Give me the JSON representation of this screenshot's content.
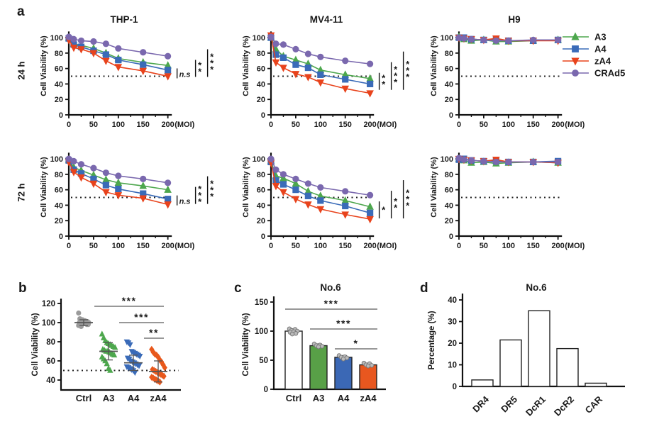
{
  "panels": {
    "a": {
      "label": "a",
      "rows": [
        {
          "row_label": "24 h"
        },
        {
          "row_label": "72 h"
        }
      ]
    },
    "b": {
      "label": "b"
    },
    "c": {
      "label": "c"
    },
    "d": {
      "label": "d"
    }
  },
  "legend": {
    "position": "right-of-H9-24h",
    "items": [
      {
        "label": "A3",
        "color": "#4DA74D",
        "marker": "triangle-up"
      },
      {
        "label": "A4",
        "color": "#3A6BB8",
        "marker": "square"
      },
      {
        "label": "zA4",
        "color": "#E8431C",
        "marker": "triangle-down"
      },
      {
        "label": "CRAd5",
        "color": "#7A68AE",
        "marker": "circle"
      }
    ]
  },
  "chart_data": [
    {
      "id": "a-thp1-24h",
      "panel": "a",
      "type": "line",
      "title": "THP-1",
      "row_label": "24 h",
      "xlabel": "(MOI)",
      "ylabel": "Cell Viability (%)",
      "x": [
        0,
        10,
        25,
        50,
        75,
        100,
        150,
        200
      ],
      "xticks": [
        0,
        50,
        100,
        150,
        200
      ],
      "xminor": [
        25,
        75,
        125,
        175
      ],
      "yticks": [
        0,
        20,
        40,
        60,
        80,
        100
      ],
      "ylim": [
        0,
        112
      ],
      "dotted_line": 50,
      "series": [
        {
          "name": "A3",
          "values": [
            100,
            92,
            90,
            86,
            80,
            73,
            68,
            64
          ]
        },
        {
          "name": "A4",
          "values": [
            99,
            91,
            88,
            83,
            78,
            71,
            65,
            58
          ]
        },
        {
          "name": "zA4",
          "values": [
            97,
            87,
            85,
            80,
            70,
            62,
            57,
            50
          ]
        },
        {
          "name": "CRAd5",
          "values": [
            101,
            98,
            96,
            95,
            92,
            86,
            81,
            76
          ]
        }
      ],
      "significance": [
        "n.s",
        "**",
        "***"
      ]
    },
    {
      "id": "a-mv411-24h",
      "panel": "a",
      "type": "line",
      "title": "MV4-11",
      "row_label": "24 h",
      "xlabel": "(MOI)",
      "ylabel": "Cell Viability (%)",
      "x": [
        0,
        10,
        25,
        50,
        75,
        100,
        150,
        200
      ],
      "xticks": [
        0,
        50,
        100,
        150,
        200
      ],
      "xminor": [
        25,
        75,
        125,
        175
      ],
      "yticks": [
        0,
        20,
        40,
        60,
        80,
        100
      ],
      "ylim": [
        0,
        112
      ],
      "dotted_line": 50,
      "series": [
        {
          "name": "A3",
          "values": [
            100,
            85,
            76,
            71,
            66,
            58,
            52,
            47
          ]
        },
        {
          "name": "A4",
          "values": [
            100,
            78,
            74,
            65,
            61,
            52,
            46,
            40
          ]
        },
        {
          "name": "zA4",
          "values": [
            103,
            68,
            61,
            53,
            49,
            42,
            34,
            28
          ]
        },
        {
          "name": "CRAd5",
          "values": [
            101,
            92,
            91,
            85,
            79,
            75,
            70,
            66
          ]
        }
      ],
      "significance": [
        "**",
        "***",
        "***"
      ]
    },
    {
      "id": "a-h9-24h",
      "panel": "a",
      "type": "line",
      "title": "H9",
      "row_label": "24 h",
      "xlabel": "(MOI)",
      "ylabel": "Cell Viability (%)",
      "x": [
        0,
        10,
        25,
        50,
        75,
        100,
        150,
        200
      ],
      "xticks": [
        0,
        50,
        100,
        150,
        200
      ],
      "xminor": [
        25,
        75,
        125,
        175
      ],
      "yticks": [
        0,
        20,
        40,
        60,
        80,
        100
      ],
      "ylim": [
        0,
        112
      ],
      "dotted_line": 50,
      "series": [
        {
          "name": "A3",
          "values": [
            101,
            98,
            96,
            97,
            95,
            95,
            96,
            97
          ]
        },
        {
          "name": "A4",
          "values": [
            100,
            100,
            98,
            97,
            98,
            96,
            96,
            97
          ]
        },
        {
          "name": "zA4",
          "values": [
            100,
            99,
            98,
            97,
            99,
            96,
            96,
            96
          ]
        },
        {
          "name": "CRAd5",
          "values": [
            100,
            99,
            98,
            97,
            96,
            96,
            97,
            97
          ]
        }
      ],
      "significance": []
    },
    {
      "id": "a-thp1-72h",
      "panel": "a",
      "type": "line",
      "title": "",
      "row_label": "72 h",
      "xlabel": "(MOI)",
      "ylabel": "Cell Viability (%)",
      "x": [
        0,
        10,
        25,
        50,
        75,
        100,
        150,
        200
      ],
      "xticks": [
        0,
        50,
        100,
        150,
        200
      ],
      "xminor": [
        25,
        75,
        125,
        175
      ],
      "yticks": [
        0,
        20,
        40,
        60,
        80,
        100
      ],
      "ylim": [
        0,
        112
      ],
      "dotted_line": 50,
      "series": [
        {
          "name": "A3",
          "values": [
            99,
            89,
            85,
            79,
            73,
            69,
            65,
            60
          ]
        },
        {
          "name": "A4",
          "values": [
            98,
            86,
            81,
            74,
            66,
            61,
            55,
            48
          ]
        },
        {
          "name": "zA4",
          "values": [
            96,
            83,
            76,
            68,
            57,
            53,
            49,
            41
          ]
        },
        {
          "name": "CRAd5",
          "values": [
            100,
            97,
            93,
            88,
            82,
            78,
            74,
            69
          ]
        }
      ],
      "significance": [
        "n.s",
        "***",
        "***"
      ]
    },
    {
      "id": "a-mv411-72h",
      "panel": "a",
      "type": "line",
      "title": "",
      "row_label": "72 h",
      "xlabel": "(MOI)",
      "ylabel": "Cell Viability (%)",
      "x": [
        0,
        10,
        25,
        50,
        75,
        100,
        150,
        200
      ],
      "xticks": [
        0,
        50,
        100,
        150,
        200
      ],
      "xminor": [
        25,
        75,
        125,
        175
      ],
      "yticks": [
        0,
        20,
        40,
        60,
        80,
        100
      ],
      "ylim": [
        0,
        112
      ],
      "dotted_line": 50,
      "series": [
        {
          "name": "A3",
          "values": [
            97,
            78,
            75,
            68,
            58,
            52,
            46,
            38
          ]
        },
        {
          "name": "A4",
          "values": [
            96,
            72,
            67,
            60,
            52,
            46,
            39,
            30
          ]
        },
        {
          "name": "zA4",
          "values": [
            95,
            65,
            57,
            48,
            41,
            35,
            28,
            22
          ]
        },
        {
          "name": "CRAd5",
          "values": [
            100,
            86,
            80,
            74,
            68,
            63,
            58,
            53
          ]
        }
      ],
      "significance": [
        "*",
        "**",
        "***"
      ]
    },
    {
      "id": "a-h9-72h",
      "panel": "a",
      "type": "line",
      "title": "",
      "row_label": "72 h",
      "xlabel": "(MOI)",
      "ylabel": "Cell Viability (%)",
      "x": [
        0,
        10,
        25,
        50,
        75,
        100,
        150,
        200
      ],
      "xticks": [
        0,
        50,
        100,
        150,
        200
      ],
      "xminor": [
        25,
        75,
        125,
        175
      ],
      "yticks": [
        0,
        20,
        40,
        60,
        80,
        100
      ],
      "ylim": [
        0,
        112
      ],
      "dotted_line": 50,
      "series": [
        {
          "name": "A3",
          "values": [
            100,
            98,
            95,
            96,
            94,
            95,
            96,
            95
          ]
        },
        {
          "name": "A4",
          "values": [
            99,
            100,
            98,
            97,
            97,
            96,
            96,
            97
          ]
        },
        {
          "name": "zA4",
          "values": [
            100,
            99,
            98,
            97,
            99,
            96,
            96,
            95
          ]
        },
        {
          "name": "CRAd5",
          "values": [
            101,
            99,
            98,
            97,
            96,
            96,
            96,
            96
          ]
        }
      ],
      "significance": []
    },
    {
      "id": "b-dotplot",
      "panel": "b",
      "type": "scatter",
      "title": "",
      "ylabel": "Cell Viability (%)",
      "yticks": [
        40,
        60,
        80,
        100,
        120
      ],
      "dotted_line": 50,
      "categories": [
        "Ctrl",
        "A3",
        "A4",
        "zA4"
      ],
      "groups": [
        {
          "name": "Ctrl",
          "color": "#9B9B9B",
          "marker": "circle",
          "mean": 100,
          "sd": 3,
          "points": [
            110,
            104,
            103,
            103,
            102,
            102,
            101,
            101,
            100,
            100,
            100,
            100,
            99,
            99,
            99,
            98,
            98,
            97,
            97,
            96
          ]
        },
        {
          "name": "A3",
          "color": "#4DA74D",
          "marker": "triangle-up",
          "mean": 70,
          "sd": 9,
          "points": [
            88,
            84,
            81,
            79,
            78,
            77,
            76,
            75,
            74,
            72,
            71,
            70,
            70,
            69,
            68,
            67,
            66,
            64,
            62,
            60,
            57,
            52,
            50
          ]
        },
        {
          "name": "A4",
          "color": "#3A6BB8",
          "marker": "triangle-down",
          "mean": 58,
          "sd": 8,
          "points": [
            80,
            79,
            77,
            70,
            69,
            68,
            67,
            66,
            65,
            63,
            62,
            60,
            59,
            58,
            57,
            56,
            55,
            54,
            53,
            52,
            51,
            50,
            48
          ]
        },
        {
          "name": "zA4",
          "color": "#E8581C",
          "marker": "diamond",
          "mean": 49,
          "sd": 11,
          "points": [
            72,
            69,
            67,
            66,
            64,
            61,
            59,
            56,
            53,
            51,
            50,
            49,
            48,
            47,
            46,
            45,
            44,
            43,
            42,
            41,
            40,
            39,
            38
          ]
        }
      ],
      "significance": [
        {
          "from": 0,
          "to": 3,
          "stars": "***"
        },
        {
          "from": 1,
          "to": 3,
          "stars": "***"
        },
        {
          "from": 2,
          "to": 3,
          "stars": "**"
        }
      ]
    },
    {
      "id": "c-bars",
      "panel": "c",
      "type": "bar",
      "title": "No.6",
      "ylabel": "Cell Viability (%)",
      "yticks": [
        0,
        50,
        100,
        150
      ],
      "categories": [
        "Ctrl",
        "A3",
        "A4",
        "zA4"
      ],
      "values": [
        100,
        75,
        55,
        42
      ],
      "errors": [
        4,
        3,
        3,
        3
      ],
      "colors": [
        "#FFFFFF",
        "#58A047",
        "#3B68B5",
        "#E8571F"
      ],
      "dots": [
        [
          104,
          103,
          101,
          100,
          99,
          98,
          96,
          95
        ],
        [
          78,
          76,
          75,
          74,
          73
        ],
        [
          58,
          56,
          55,
          54,
          52
        ],
        [
          45,
          44,
          42,
          41,
          40
        ]
      ],
      "significance": [
        {
          "from": 0,
          "to": 3,
          "stars": "***"
        },
        {
          "from": 1,
          "to": 3,
          "stars": "***"
        },
        {
          "from": 2,
          "to": 3,
          "stars": "*"
        }
      ]
    },
    {
      "id": "d-bars",
      "panel": "d",
      "type": "bar",
      "title": "No.6",
      "ylabel": "Percentage (%)",
      "yticks": [
        0,
        10,
        20,
        30,
        40
      ],
      "categories": [
        "DR4",
        "DR5",
        "DcR1",
        "DcR2",
        "CAR"
      ],
      "values": [
        3,
        21.5,
        35,
        17.5,
        1.5
      ],
      "colors": [
        "#FFFFFF",
        "#FFFFFF",
        "#FFFFFF",
        "#FFFFFF",
        "#FFFFFF"
      ],
      "rotate_labels": 45
    }
  ]
}
